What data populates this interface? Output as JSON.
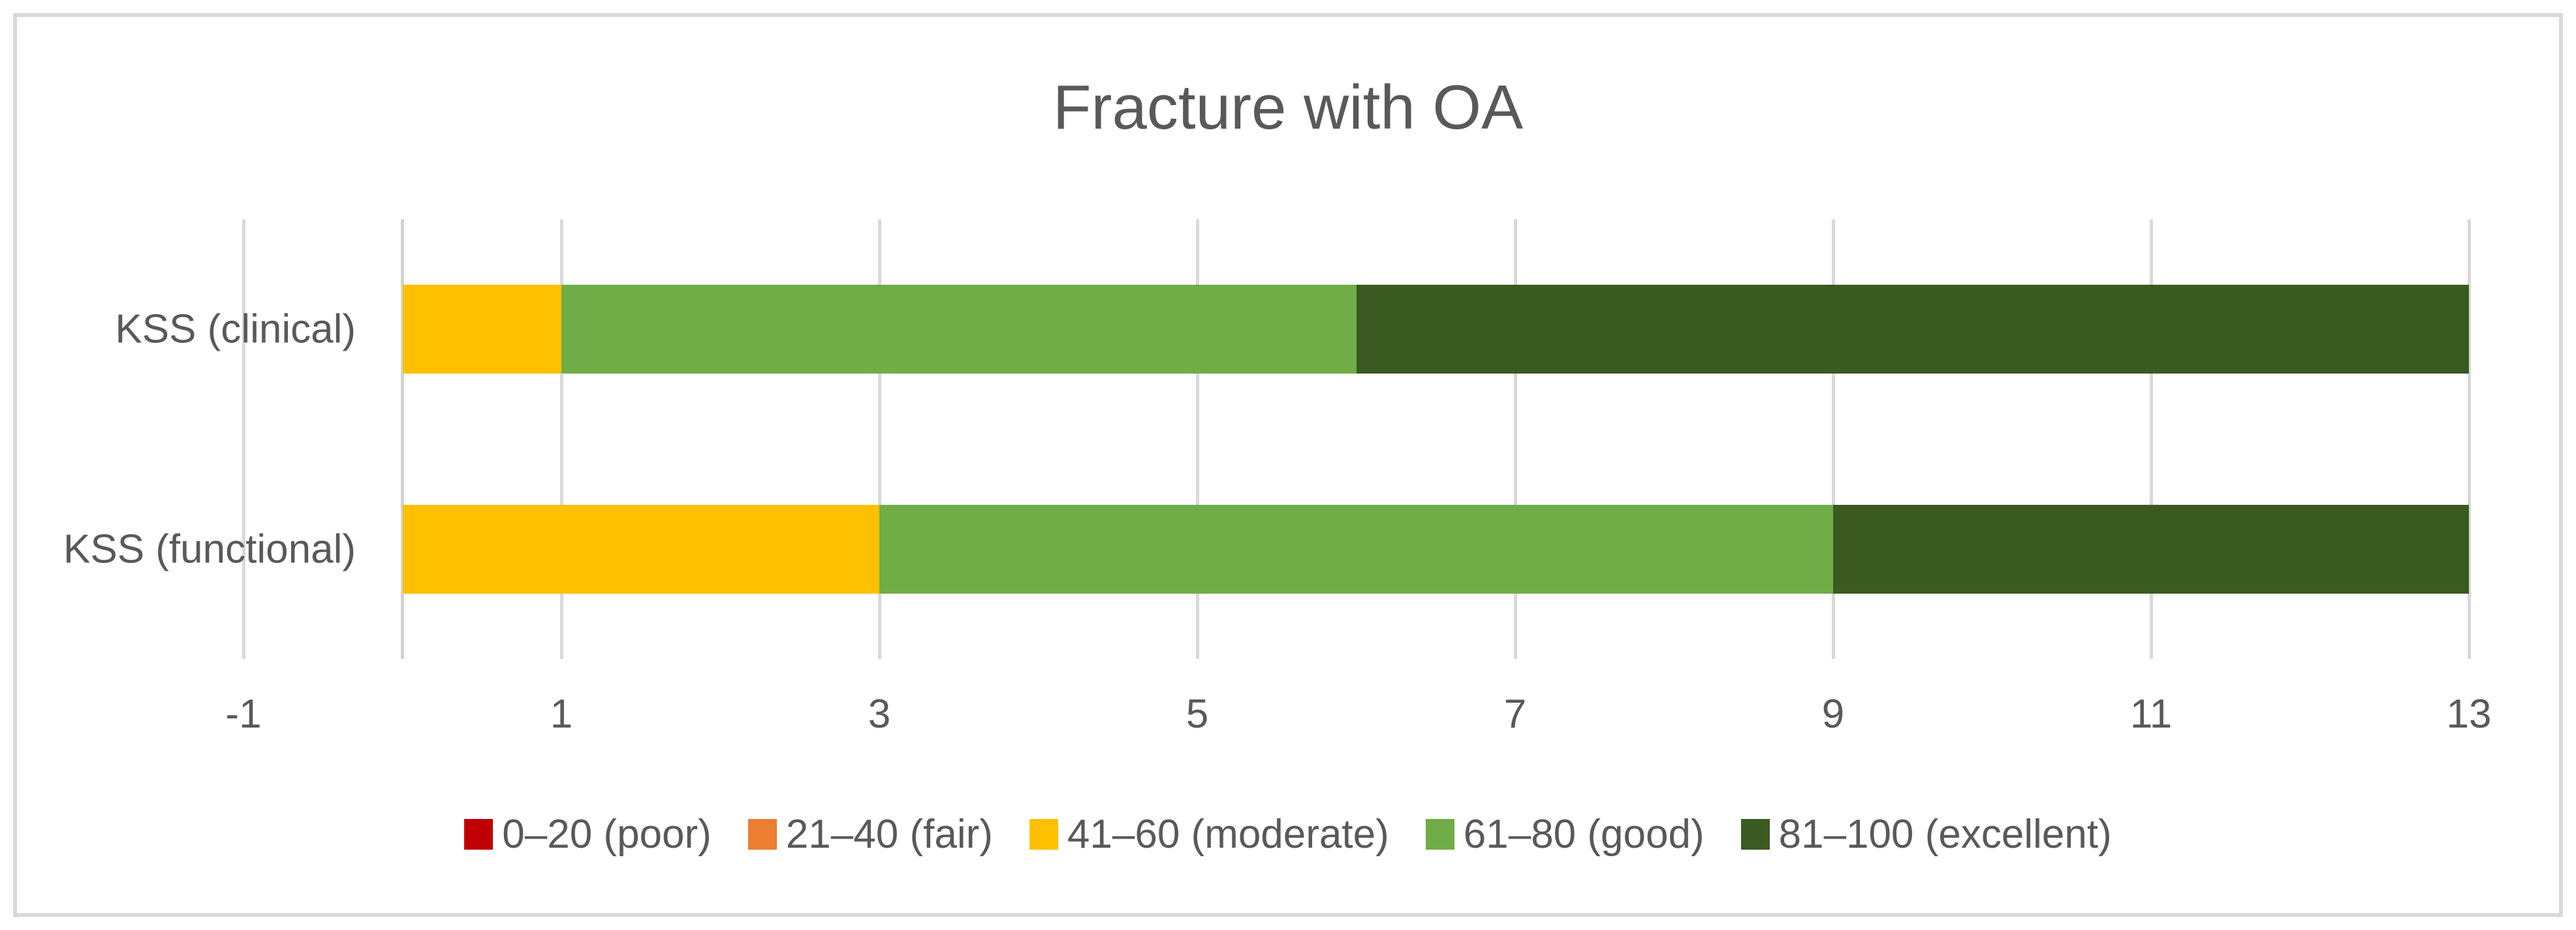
{
  "title": "Fracture with OA",
  "colors": {
    "text": "#595959",
    "gridline": "#D9D9D9",
    "axis_line": "#D2D2D2",
    "frame_border": "#D9D9D9",
    "background": "#FFFFFF"
  },
  "chart_data": {
    "type": "bar",
    "orientation": "horizontal",
    "stacked": true,
    "title": "Fracture with OA",
    "categories": [
      "KSS (clinical)",
      "KSS (functional)"
    ],
    "series": [
      {
        "name": "0–20 (poor)",
        "color": "#C00000",
        "values": [
          0,
          0
        ]
      },
      {
        "name": "21–40 (fair)",
        "color": "#ED7D31",
        "values": [
          0,
          0
        ]
      },
      {
        "name": "41–60 (moderate)",
        "color": "#FFC000",
        "values": [
          1,
          3
        ]
      },
      {
        "name": "61–80 (good)",
        "color": "#70AD47",
        "values": [
          5,
          6
        ]
      },
      {
        "name": "81–100 (excellent)",
        "color": "#3A5A22",
        "values": [
          7,
          4
        ]
      }
    ],
    "xlim": [
      -1,
      13
    ],
    "xticks": [
      -1,
      1,
      3,
      5,
      7,
      9,
      11,
      13
    ],
    "xtick_labels": [
      "-1",
      "1",
      "3",
      "5",
      "7",
      "9",
      "11",
      "13"
    ],
    "bar_start_value": 0,
    "category_axis_at": 0,
    "grid": "vertical",
    "legend_position": "bottom"
  }
}
